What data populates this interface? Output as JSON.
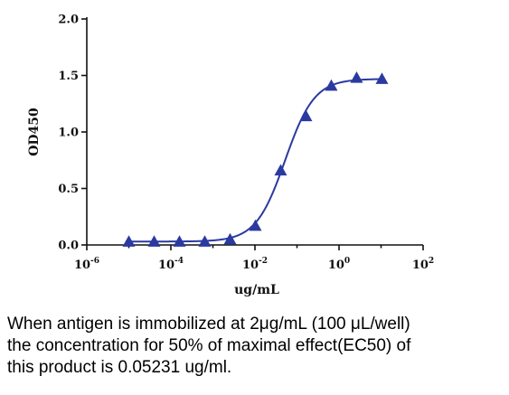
{
  "chart_data": {
    "type": "scatter",
    "fit": "four-parameter logistic curve",
    "xscale": "log",
    "xlabel": "ug/mL",
    "ylabel": "OD450",
    "xlim": [
      1e-06,
      100
    ],
    "ylim": [
      0,
      2.0
    ],
    "x_ticks": [
      {
        "base": "10",
        "exp": "-6"
      },
      {
        "base": "10",
        "exp": "-4"
      },
      {
        "base": "10",
        "exp": "-2"
      },
      {
        "base": "10",
        "exp": "0"
      },
      {
        "base": "10",
        "exp": "2"
      }
    ],
    "y_ticks": [
      "0.0",
      "0.5",
      "1.0",
      "1.5",
      "2.0"
    ],
    "series": [
      {
        "marker": "triangle",
        "color": "#2b3aa0",
        "x": [
          1e-05,
          4e-05,
          0.00016,
          0.00064,
          0.00256,
          0.01024,
          0.04096,
          0.16384,
          0.65536,
          2.62144,
          10.48576
        ],
        "y": [
          0.03,
          0.03,
          0.03,
          0.03,
          0.05,
          0.17,
          0.66,
          1.14,
          1.41,
          1.48,
          1.47
        ]
      }
    ],
    "curve": {
      "bottom": 0.03,
      "top": 1.47,
      "ec50": 0.05231,
      "hill": 1.25
    },
    "grid": false,
    "legend": "none"
  },
  "caption": [
    "When antigen is immobilized at 2μg/mL (100 μL/well)",
    "the concentration for 50% of maximal effect(EC50) of",
    "this product is 0.05231 ug/ml."
  ]
}
